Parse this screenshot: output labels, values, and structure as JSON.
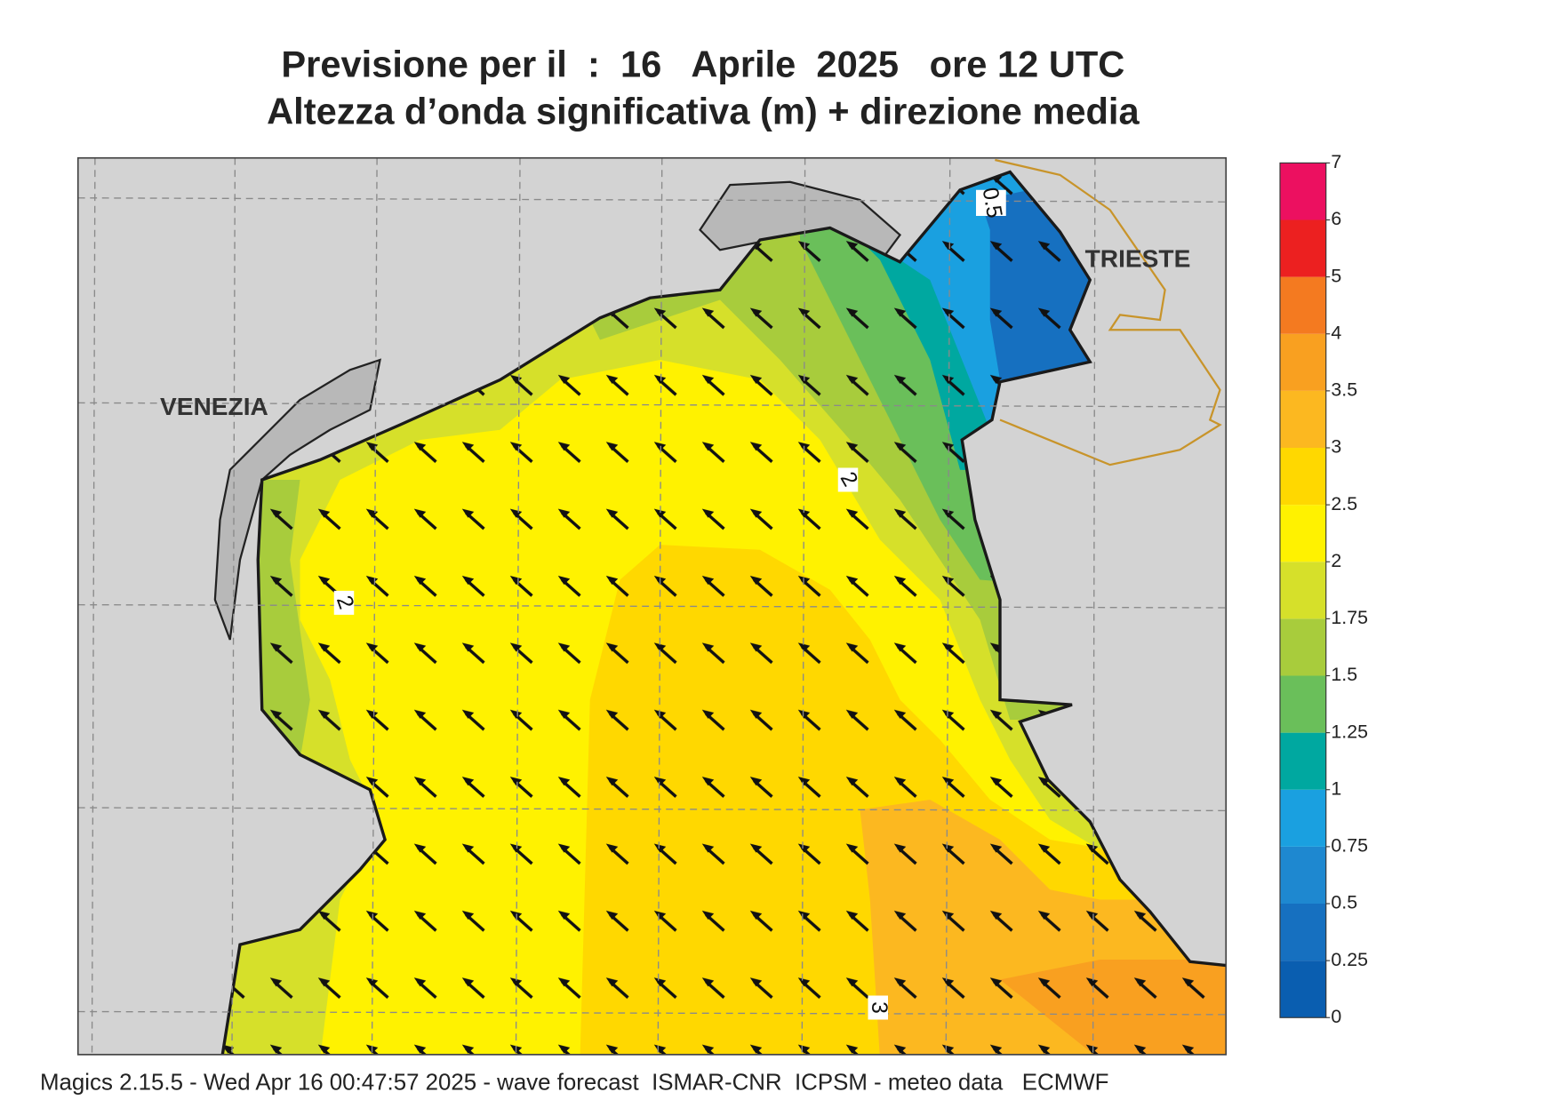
{
  "title": {
    "line1": "Previsione per il  :  16   Aprile  2025   ore 12 UTC",
    "line2": "Altezza d’onda significativa (m) + direzione media"
  },
  "map": {
    "place_labels": [
      "VENEZIA",
      "TRIESTE"
    ],
    "contour_labels": [
      0.5,
      2,
      2,
      3
    ]
  },
  "colorbar": {
    "levels": [
      0,
      0.25,
      0.5,
      0.75,
      1,
      1.25,
      1.5,
      1.75,
      2,
      2.5,
      3,
      3.5,
      4,
      5,
      6,
      7
    ],
    "colors": [
      "#0a5eb0",
      "#1670c0",
      "#1e88d0",
      "#1aa0e0",
      "#00a8a0",
      "#6abf5a",
      "#a8cc3c",
      "#d6e02a",
      "#fff200",
      "#ffd800",
      "#fcb820",
      "#f9a020",
      "#f47a20",
      "#ec2020",
      "#ec1060"
    ]
  },
  "footer": "Magics 2.15.5 - Wed Apr 16 00:47:57 2025 - wave forecast  ISMAR-CNR  ICPSM - meteo data   ECMWF"
}
